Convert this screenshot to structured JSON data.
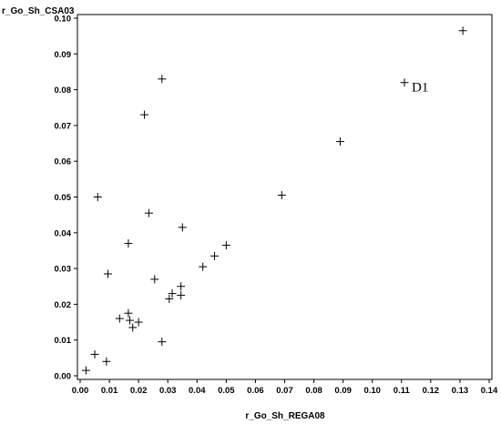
{
  "chart_data": {
    "type": "scatter",
    "title": "",
    "xlabel": "r_Go_Sh_REGA08",
    "ylabel": "r_Go_Sh_CSA03",
    "xlim": [
      0,
      0.14
    ],
    "ylim": [
      0,
      0.1
    ],
    "x_ticks": [
      "0.00",
      "0.01",
      "0.02",
      "0.03",
      "0.04",
      "0.05",
      "0.06",
      "0.07",
      "0.08",
      "0.09",
      "0.10",
      "0.11",
      "0.12",
      "0.13",
      "0.14"
    ],
    "y_ticks": [
      "0.00",
      "0.01",
      "0.02",
      "0.03",
      "0.04",
      "0.05",
      "0.06",
      "0.07",
      "0.08",
      "0.09",
      "0.10"
    ],
    "grid": false,
    "marker": "plus",
    "colors": {
      "marker": "#000000",
      "frame": "#000000"
    },
    "points": [
      {
        "x": 0.002,
        "y": 0.0015
      },
      {
        "x": 0.005,
        "y": 0.006
      },
      {
        "x": 0.006,
        "y": 0.05
      },
      {
        "x": 0.009,
        "y": 0.004
      },
      {
        "x": 0.0095,
        "y": 0.0285
      },
      {
        "x": 0.0135,
        "y": 0.016
      },
      {
        "x": 0.0165,
        "y": 0.037
      },
      {
        "x": 0.0165,
        "y": 0.0175
      },
      {
        "x": 0.017,
        "y": 0.0155
      },
      {
        "x": 0.018,
        "y": 0.0135
      },
      {
        "x": 0.02,
        "y": 0.015
      },
      {
        "x": 0.022,
        "y": 0.073
      },
      {
        "x": 0.0235,
        "y": 0.0455
      },
      {
        "x": 0.0255,
        "y": 0.027
      },
      {
        "x": 0.028,
        "y": 0.083
      },
      {
        "x": 0.028,
        "y": 0.0095
      },
      {
        "x": 0.0305,
        "y": 0.0215
      },
      {
        "x": 0.0315,
        "y": 0.023
      },
      {
        "x": 0.0345,
        "y": 0.0225
      },
      {
        "x": 0.0345,
        "y": 0.025
      },
      {
        "x": 0.035,
        "y": 0.0415
      },
      {
        "x": 0.042,
        "y": 0.0305
      },
      {
        "x": 0.046,
        "y": 0.0335
      },
      {
        "x": 0.05,
        "y": 0.0365
      },
      {
        "x": 0.069,
        "y": 0.0505
      },
      {
        "x": 0.089,
        "y": 0.0655
      },
      {
        "x": 0.111,
        "y": 0.082
      },
      {
        "x": 0.131,
        "y": 0.0965
      }
    ],
    "annotations": [
      {
        "text": "D1",
        "x": 0.1135,
        "y": 0.081
      }
    ]
  }
}
